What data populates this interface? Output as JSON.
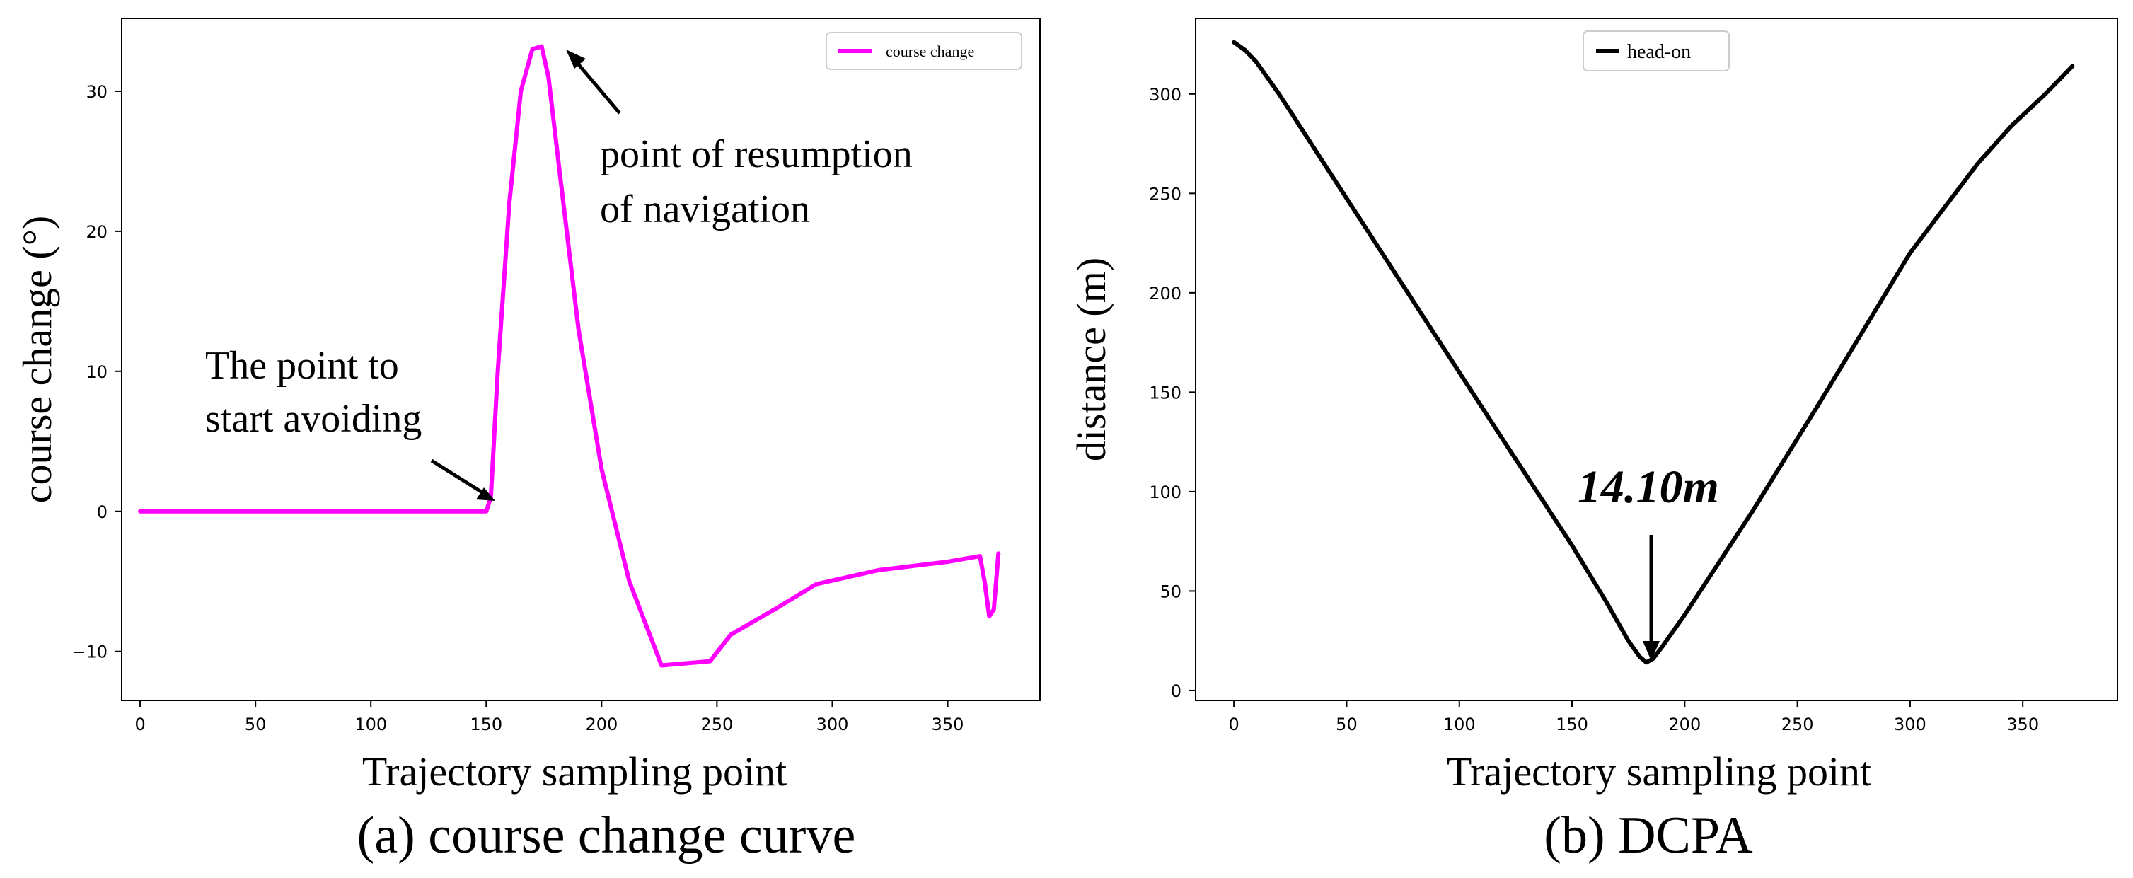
{
  "chart_data": [
    {
      "type": "line",
      "caption": "(a) course change curve",
      "xlabel": "Trajectory sampling point",
      "ylabel": "course change (°)",
      "xlim": [
        -8,
        390
      ],
      "ylim": [
        -13.5,
        35.2
      ],
      "xticks": [
        0,
        50,
        100,
        150,
        200,
        250,
        300,
        350
      ],
      "yticks": [
        -10,
        0,
        10,
        20,
        30
      ],
      "legend": "top-right",
      "color": "#ff00ff",
      "series": [
        {
          "name": "course change",
          "x": [
            0,
            50,
            100,
            150,
            152,
            155,
            160,
            165,
            170,
            174,
            177,
            182,
            190,
            200,
            212,
            226,
            247,
            256,
            275,
            293,
            320,
            350,
            364,
            366,
            368,
            370,
            372
          ],
          "y": [
            0,
            0,
            0,
            0,
            1,
            10,
            22,
            30,
            33,
            33.2,
            31,
            24,
            13,
            3,
            -5,
            -11,
            -10.7,
            -8.8,
            -7,
            -5.2,
            -4.2,
            -3.6,
            -3.2,
            -5,
            -7.5,
            -7,
            -3
          ]
        }
      ],
      "annotations": [
        {
          "lines": [
            "point of resumption",
            "of navigation"
          ],
          "x": 175,
          "y": 33.2
        },
        {
          "lines": [
            "The point to",
            "start avoiding"
          ],
          "x": 151,
          "y": 0
        }
      ]
    },
    {
      "type": "line",
      "caption": "(b) DCPA",
      "xlabel": "Trajectory sampling point",
      "ylabel": "distance (m)",
      "xlim": [
        -17,
        392
      ],
      "ylim": [
        -5,
        338
      ],
      "xticks": [
        0,
        50,
        100,
        150,
        200,
        250,
        300,
        350
      ],
      "yticks": [
        0,
        50,
        100,
        150,
        200,
        250,
        300
      ],
      "legend": "top-center",
      "color": "#000000",
      "series": [
        {
          "name": "head-on",
          "x": [
            0,
            5,
            10,
            20,
            40,
            80,
            120,
            150,
            165,
            175,
            180,
            183,
            186,
            190,
            200,
            230,
            260,
            300,
            330,
            345,
            360,
            372
          ],
          "y": [
            326,
            322,
            316,
            300,
            265,
            195,
            125,
            73,
            45,
            25,
            17,
            14.1,
            16,
            22,
            38,
            90,
            145,
            220,
            265,
            284,
            300,
            314
          ]
        }
      ],
      "annotations": [
        {
          "text": "14.10m",
          "x": 183,
          "y": 14.1
        }
      ]
    }
  ]
}
